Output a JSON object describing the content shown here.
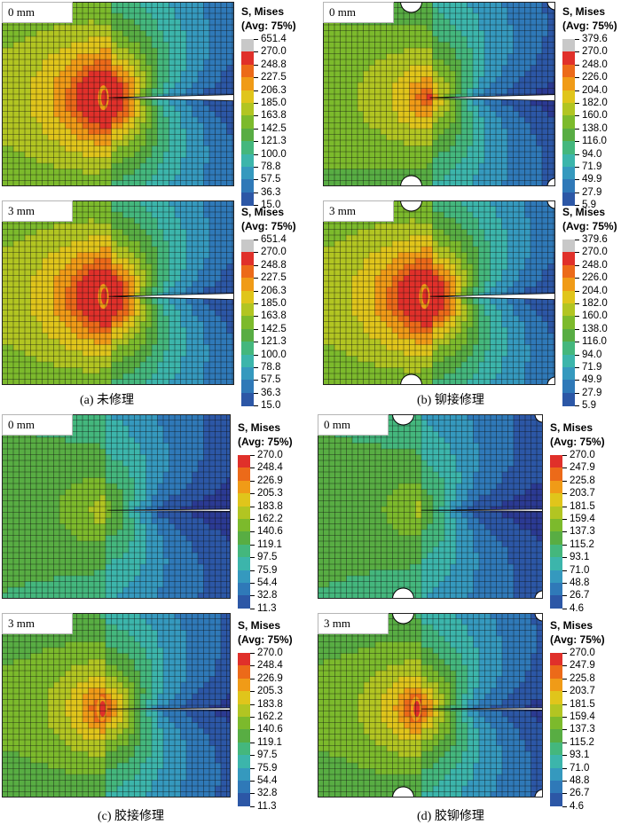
{
  "panels": [
    {
      "id": "a",
      "caption": "(a) 未修理",
      "holes": false,
      "adhesive": false,
      "plots": [
        {
          "label": "0 mm",
          "peak": 1.0,
          "hotspot": true
        },
        {
          "label": "3 mm",
          "peak": 1.0,
          "hotspot": true
        }
      ],
      "legend": {
        "title1": "S, Mises",
        "title2": "(Avg: 75%)",
        "values": [
          "651.4",
          "270.0",
          "248.8",
          "227.5",
          "206.3",
          "185.0",
          "163.8",
          "142.5",
          "121.3",
          "100.0",
          "78.8",
          "57.5",
          "36.3",
          "15.0"
        ]
      }
    },
    {
      "id": "b",
      "caption": "(b) 铆接修理",
      "holes": true,
      "adhesive": false,
      "plots": [
        {
          "label": "0 mm",
          "peak": 0.55,
          "hotspot": false
        },
        {
          "label": "3 mm",
          "peak": 1.0,
          "hotspot": true
        }
      ],
      "legend": {
        "title1": "S, Mises",
        "title2": "(Avg: 75%)",
        "values": [
          "379.6",
          "270.0",
          "248.0",
          "226.0",
          "204.0",
          "182.0",
          "160.0",
          "138.0",
          "116.0",
          "94.0",
          "71.9",
          "49.9",
          "27.9",
          "5.9"
        ]
      }
    },
    {
      "id": "c",
      "caption": "(c) 胶接修理",
      "holes": false,
      "adhesive": true,
      "plots": [
        {
          "label": "0 mm",
          "peak": 0.35,
          "hotspot": false
        },
        {
          "label": "3 mm",
          "peak": 0.75,
          "hotspot": true
        }
      ],
      "legend": {
        "title1": "S, Mises",
        "title2": "(Avg: 75%)",
        "values": [
          "270.0",
          "248.4",
          "226.9",
          "205.3",
          "183.8",
          "162.2",
          "140.6",
          "119.1",
          "97.5",
          "75.9",
          "54.4",
          "32.8",
          "11.3"
        ]
      }
    },
    {
      "id": "d",
      "caption": "(d) 胶铆修理",
      "holes": true,
      "adhesive": true,
      "plots": [
        {
          "label": "0 mm",
          "peak": 0.3,
          "hotspot": false
        },
        {
          "label": "3 mm",
          "peak": 0.75,
          "hotspot": true
        }
      ],
      "legend": {
        "title1": "S, Mises",
        "title2": "(Avg: 75%)",
        "values": [
          "270.0",
          "247.9",
          "225.8",
          "203.7",
          "181.5",
          "159.4",
          "137.3",
          "115.2",
          "93.1",
          "71.0",
          "48.8",
          "26.7",
          "4.6"
        ]
      }
    }
  ],
  "colors": {
    "contour": [
      "#2b3a93",
      "#2c57a6",
      "#2f79b8",
      "#3599be",
      "#3cb5ab",
      "#44b77d",
      "#58ad43",
      "#7cba2c",
      "#b2c522",
      "#e0c51b",
      "#f09b17",
      "#ec6a19",
      "#e0302a"
    ],
    "peak": "#c8c8c8",
    "mesh": "#101010",
    "crack": "#ffffff"
  }
}
